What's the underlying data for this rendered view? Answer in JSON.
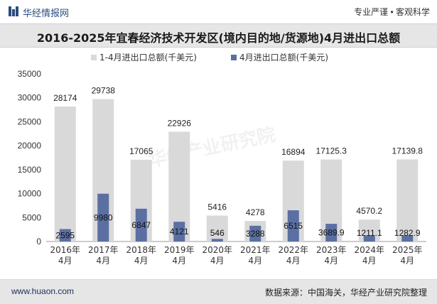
{
  "header": {
    "brand": "华经情报网",
    "tagline": "专业严谨 • 客观科学"
  },
  "title": "2016-2025年宜春经济技术开发区(境内目的地/货源地)4月进出口总额",
  "footer": {
    "site": "www.huaon.com",
    "source": "数据来源：中国海关，华经产业研究院整理"
  },
  "watermark": "华经产业研究院",
  "colors": {
    "cumulative": "#d9d9d9",
    "monthly": "#5b6fa3",
    "brand": "#2b4c7e"
  },
  "chart_data": {
    "type": "bar",
    "categories": [
      "2016年\n4月",
      "2017年\n4月",
      "2018年\n4月",
      "2019年\n4月",
      "2020年\n4月",
      "2021年\n4月",
      "2022年\n4月",
      "2023年\n4月",
      "2024年\n4月",
      "2025年\n4月"
    ],
    "series": [
      {
        "name": "1-4月进出口总额(千美元)",
        "values": [
          28174,
          29738,
          17065,
          22926,
          5416,
          4278,
          16894,
          17125.3,
          4570.2,
          17139.8
        ],
        "labels": [
          "28174",
          "29738",
          "17065",
          "22926",
          "5416",
          "4278",
          "16894",
          "17125.3",
          "4570.2",
          "17139.8"
        ]
      },
      {
        "name": "4月进出口总额(千美元)",
        "values": [
          2595,
          9980,
          6847,
          4121,
          546,
          3288,
          6515,
          3689.9,
          1211.1,
          1282.9
        ],
        "labels": [
          "2595",
          "9980",
          "6847",
          "4121",
          "546",
          "3288",
          "6515",
          "3689.9",
          "1211.1",
          "1282.9"
        ]
      }
    ],
    "yticks": [
      "0",
      "5000",
      "10000",
      "15000",
      "20000",
      "25000",
      "30000",
      "35000"
    ],
    "ylim": [
      0,
      35000
    ],
    "legend": "top-center",
    "grid": false
  }
}
